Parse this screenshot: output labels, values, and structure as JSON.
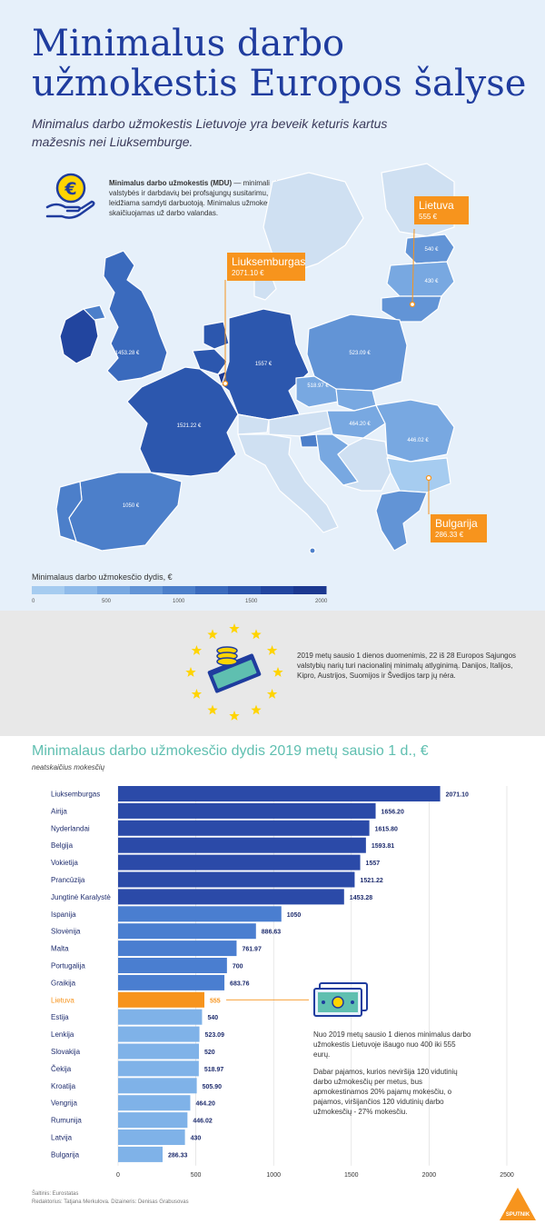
{
  "header": {
    "title_line1": "Minimalus darbo",
    "title_line2": "užmokestis Europos šalyse",
    "subtitle_line1": "Minimalus darbo užmokestis Lietuvoje yra beveik  keturis kartus",
    "subtitle_line2": "mažesnis nei Liuksemburge."
  },
  "definition": {
    "term": "Minimalus darbo užmokestis (MDU)",
    "text": " — minimali alga, nustatyta valstybės ir darbdavių bei profsąjungų susitarimu, už kurią legaliai leidžiama samdyti darbuotoją. Minimalus užmokestis paprastai skaičiuojamas už darbo valandas.",
    "icon": "euro-coin-hand-icon"
  },
  "map": {
    "labels": {
      "uk": "1453.28 €",
      "france": "1521.22 €",
      "germany": "1557 €",
      "spain": "1050 €",
      "poland": "523.09 €",
      "czech": "518.97 €",
      "hungary": "464.20 €",
      "romania": "446.02 €",
      "estonia": "540 €",
      "latvia": "430 €"
    },
    "callouts": {
      "lietuva_name": "Lietuva",
      "lietuva_value": "555 €",
      "lux_name": "Liuksemburgas",
      "lux_value": "2071.10 €",
      "bulgaria_name": "Bulgarija",
      "bulgaria_value": "286.33 €"
    },
    "legend": {
      "title": "Minimalaus darbo užmokesčio dydis, €",
      "ticks": [
        "0",
        "500",
        "1000",
        "1500",
        "2000"
      ],
      "colors": [
        "#a6ccf0",
        "#8fbbea",
        "#78a8e1",
        "#6294d6",
        "#4c7fca",
        "#3a6abd",
        "#2c57ae",
        "#22459f",
        "#1c3890"
      ]
    }
  },
  "eu_info": {
    "text": "2019 metų sausio 1 dienos duomenimis, 22 iš 28 Europos Sąjungos valstybių narių turi nacionalinį minimalų atlyginimą. Danijos, Italijos, Kipro, Austrijos, Suomijos ir Švedijos tarp jų nėra.",
    "icon": "eu-stars-money-icon"
  },
  "chart_data": {
    "type": "bar",
    "title": "Minimalaus darbo užmokesčio dydis 2019 metų sausio 1 d., €",
    "subtitle": "neatskaičius mokesčių",
    "categories": [
      "Liuksemburgas",
      "Airija",
      "Nyderlandai",
      "Belgija",
      "Vokietija",
      "Prancūzija",
      "Jungtinė Karalystė",
      "Ispanija",
      "Slovėnija",
      "Malta",
      "Portugalija",
      "Graikija",
      "Lietuva",
      "Estija",
      "Lenkija",
      "Slovakija",
      "Čekija",
      "Kroatija",
      "Vengrija",
      "Rumunija",
      "Latvija",
      "Bulgarija"
    ],
    "values": [
      2071.1,
      1656.2,
      1615.8,
      1593.81,
      1557,
      1521.22,
      1453.28,
      1050,
      886.63,
      761.97,
      700,
      683.76,
      555,
      540,
      523.09,
      520,
      518.97,
      505.9,
      464.2,
      446.02,
      430,
      286.33
    ],
    "value_labels": [
      "2071.10",
      "1656.20",
      "1615.80",
      "1593.81",
      "1557",
      "1521.22",
      "1453.28",
      "1050",
      "886.63",
      "761.97",
      "700",
      "683.76",
      "555",
      "540",
      "523.09",
      "520",
      "518.97",
      "505.90",
      "464.20",
      "446.02",
      "430",
      "286.33"
    ],
    "highlight": "Lietuva",
    "xlim": [
      0,
      2500
    ],
    "xticks": [
      "0",
      "500",
      "1000",
      "1500",
      "2000",
      "2500"
    ],
    "colors": {
      "dark": "#2b4aa8",
      "mid": "#4a7ed0",
      "light": "#7fb2e8",
      "highlight": "#f7941d"
    }
  },
  "note": {
    "p1": "Nuo 2019 metų sausio 1 dienos minimalus darbo užmokestis Lietuvoje išaugo nuo 400 iki 555 eurų.",
    "p2": "Dabar pajamos, kurios neviršija 120 vidutinių darbo užmokesčių per metus, bus apmokestinamos 20% pajamų mokesčiu, o pajamos, viršijančios 120 vidutinių darbo užmokesčių - 27% mokesčiu.",
    "icon": "banknote-icon"
  },
  "footer": {
    "source": "Šaltinis: Eurostatas",
    "credits": "Redaktorius: Tatjana Merkulova. Dizaineris: Denisas Grabusovas"
  },
  "brand": {
    "logo_text": "SPUTNIK",
    "color": "#f7941d"
  }
}
